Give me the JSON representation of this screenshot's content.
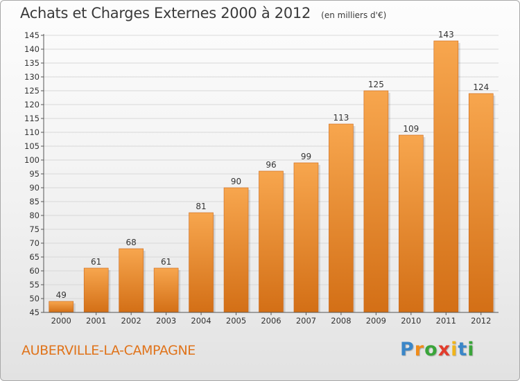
{
  "header": {
    "title": "Achats et Charges Externes 2000 à 2012",
    "subtitle": "(en milliers d'€)"
  },
  "footer": {
    "commune": "AUBERVILLE-LA-CAMPAGNE",
    "logo_letters": [
      {
        "char": "P",
        "color": "#3a86c8"
      },
      {
        "char": "r",
        "color": "#f08c1a"
      },
      {
        "char": "o",
        "color": "#3aa53a"
      },
      {
        "char": "x",
        "color": "#e23c2c"
      },
      {
        "char": "i",
        "color": "#f0b41a"
      },
      {
        "char": "t",
        "color": "#3a86c8"
      },
      {
        "char": "i",
        "color": "#3aa53a"
      }
    ]
  },
  "colors": {
    "bar_light": "#f7a64e",
    "bar_dark": "#d36f16",
    "accent": "#e0731a",
    "axis": "#555555",
    "grid": "#d8d8d8"
  },
  "chart_data": {
    "type": "bar",
    "categories": [
      "2000",
      "2001",
      "2002",
      "2003",
      "2004",
      "2005",
      "2006",
      "2007",
      "2008",
      "2009",
      "2010",
      "2011",
      "2012"
    ],
    "values": [
      49,
      61,
      68,
      61,
      81,
      90,
      96,
      99,
      113,
      125,
      109,
      143,
      124
    ],
    "title": "Achats et Charges Externes 2000 à 2012",
    "ylim": [
      45,
      145
    ],
    "yticks": [
      45,
      50,
      55,
      60,
      65,
      70,
      75,
      80,
      85,
      90,
      95,
      100,
      105,
      110,
      115,
      120,
      125,
      130,
      135,
      140,
      145
    ],
    "grid": true,
    "data_labels": true
  }
}
